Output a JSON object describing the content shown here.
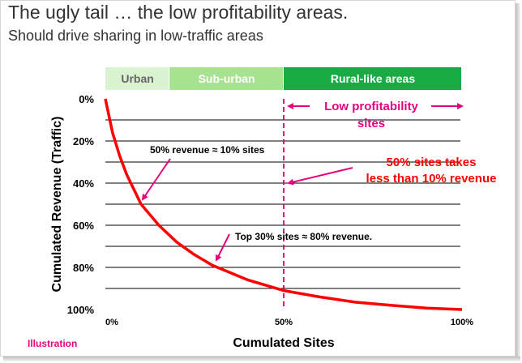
{
  "slide": {
    "title": "The ugly tail … the low profitability areas.",
    "subtitle": "Should drive sharing in low-traffic areas",
    "footnote": "Illustration"
  },
  "colors": {
    "curve": "#ff0000",
    "magenta": "#e6007e",
    "urban_band": "#d9f2d0",
    "suburban_band": "#a6e28f",
    "rural_band": "#1aaa44"
  },
  "chart_data": {
    "type": "line",
    "title": "",
    "xlabel": "Cumulated Sites",
    "ylabel": "Cumulated Revenue (Traffic)",
    "xlim": [
      0,
      100
    ],
    "ylim": [
      0,
      100
    ],
    "y_inverted": true,
    "x_ticks": [
      "0%",
      "50%",
      "100%"
    ],
    "y_ticks": [
      "0%",
      "20%",
      "40%",
      "60%",
      "80%",
      "100%"
    ],
    "grid": "horizontal",
    "series": [
      {
        "x": [
          0,
          2,
          4,
          6,
          8,
          10,
          15,
          20,
          25,
          30,
          40,
          50,
          60,
          70,
          80,
          90,
          100
        ],
        "y": [
          0,
          16,
          27,
          36,
          43,
          50,
          60,
          68,
          74,
          79,
          86,
          91,
          94,
          96.5,
          98,
          99.3,
          100
        ]
      }
    ],
    "bands": [
      {
        "label": "Urban",
        "x_start": 0,
        "x_end": 18
      },
      {
        "label": "Sub-urban",
        "x_start": 18,
        "x_end": 50
      },
      {
        "label": "Rural-like areas",
        "x_start": 50,
        "x_end": 100
      }
    ],
    "marker_line_x": 50,
    "annotations": {
      "low_profit": "Low profitability\nsites",
      "half_sites": "50% sites takes\nless than 10% revenue",
      "half_revenue": "50% revenue ≈ 10% sites",
      "top30": "Top 30% sites ≈ 80% revenue."
    }
  }
}
